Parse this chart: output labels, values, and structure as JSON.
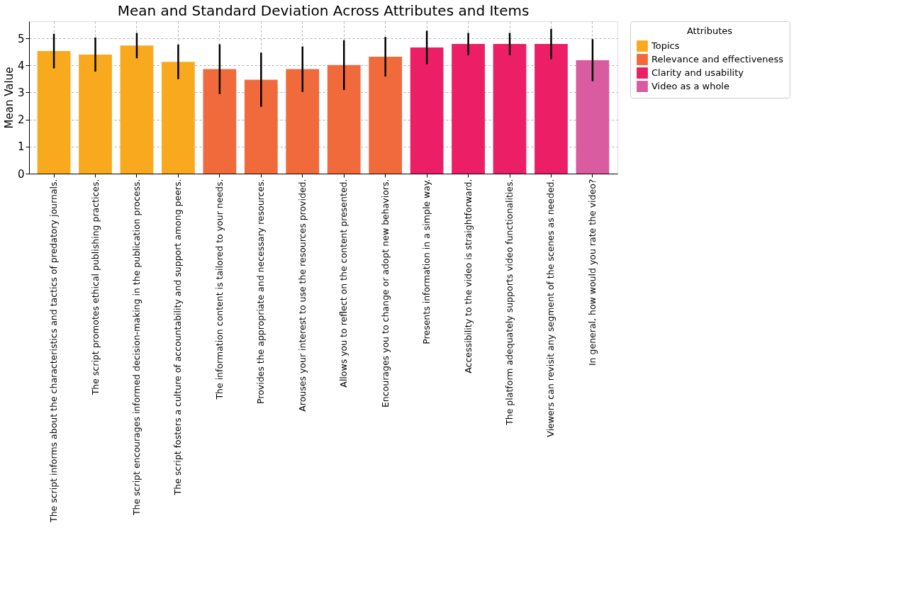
{
  "chart_data": {
    "type": "bar",
    "title": "Mean and Standard Deviation Across Attributes and Items",
    "ylabel": "Mean Value",
    "legend_title": "Attributes",
    "categories": [
      "The script informs about the characteristics and tactics of predatory journals.",
      "The script promotes ethical publishing practices.",
      "The script encourages informed decision-making in the publication process.",
      "The script fosters a culture of accountability and support among peers.",
      "The information content is tailored to your needs.",
      "Provides the appropriate and necessary resources.",
      "Arouses your interest to use the resources provided.",
      "Allows you to reflect on the content presented.",
      "Encourages you to change or adopt new behaviors.",
      "Presents information in a simple way.",
      "Accessibility to the video is straightforward.",
      "The platform adequately supports video functionalities.",
      "Viewers can revisit any segment of the scenes as needed.",
      "In general, how would you rate the video?"
    ],
    "series": [
      {
        "name": "Topics",
        "color": "#f9a91e",
        "values": [
          4.53,
          4.4,
          4.73,
          4.13,
          null,
          null,
          null,
          null,
          null,
          null,
          null,
          null,
          null,
          null
        ],
        "errors": [
          0.64,
          0.63,
          0.47,
          0.64,
          null,
          null,
          null,
          null,
          null,
          null,
          null,
          null,
          null,
          null
        ]
      },
      {
        "name": "Relevance and effectiveness",
        "color": "#f06a3c",
        "values": [
          null,
          null,
          null,
          null,
          3.86,
          3.47,
          3.86,
          4.01,
          4.32,
          null,
          null,
          null,
          null,
          null
        ],
        "errors": [
          null,
          null,
          null,
          null,
          0.92,
          1.0,
          0.84,
          0.92,
          0.73,
          null,
          null,
          null,
          null,
          null
        ]
      },
      {
        "name": "Clarity and usability",
        "color": "#ec1f66",
        "values": [
          null,
          null,
          null,
          null,
          null,
          null,
          null,
          null,
          null,
          4.66,
          4.79,
          4.79,
          4.79,
          null
        ],
        "errors": [
          null,
          null,
          null,
          null,
          null,
          null,
          null,
          null,
          null,
          0.62,
          0.41,
          0.41,
          0.56,
          null
        ]
      },
      {
        "name": "Video as a whole",
        "color": "#d95ba0",
        "values": [
          null,
          null,
          null,
          null,
          null,
          null,
          null,
          null,
          null,
          null,
          null,
          null,
          null,
          4.19
        ],
        "errors": [
          null,
          null,
          null,
          null,
          null,
          null,
          null,
          null,
          null,
          null,
          null,
          null,
          null,
          0.78
        ]
      }
    ],
    "ylim": [
      0,
      5.63
    ],
    "yticks": [
      0,
      1,
      2,
      3,
      4,
      5
    ],
    "grid": true,
    "legend": "top right"
  }
}
